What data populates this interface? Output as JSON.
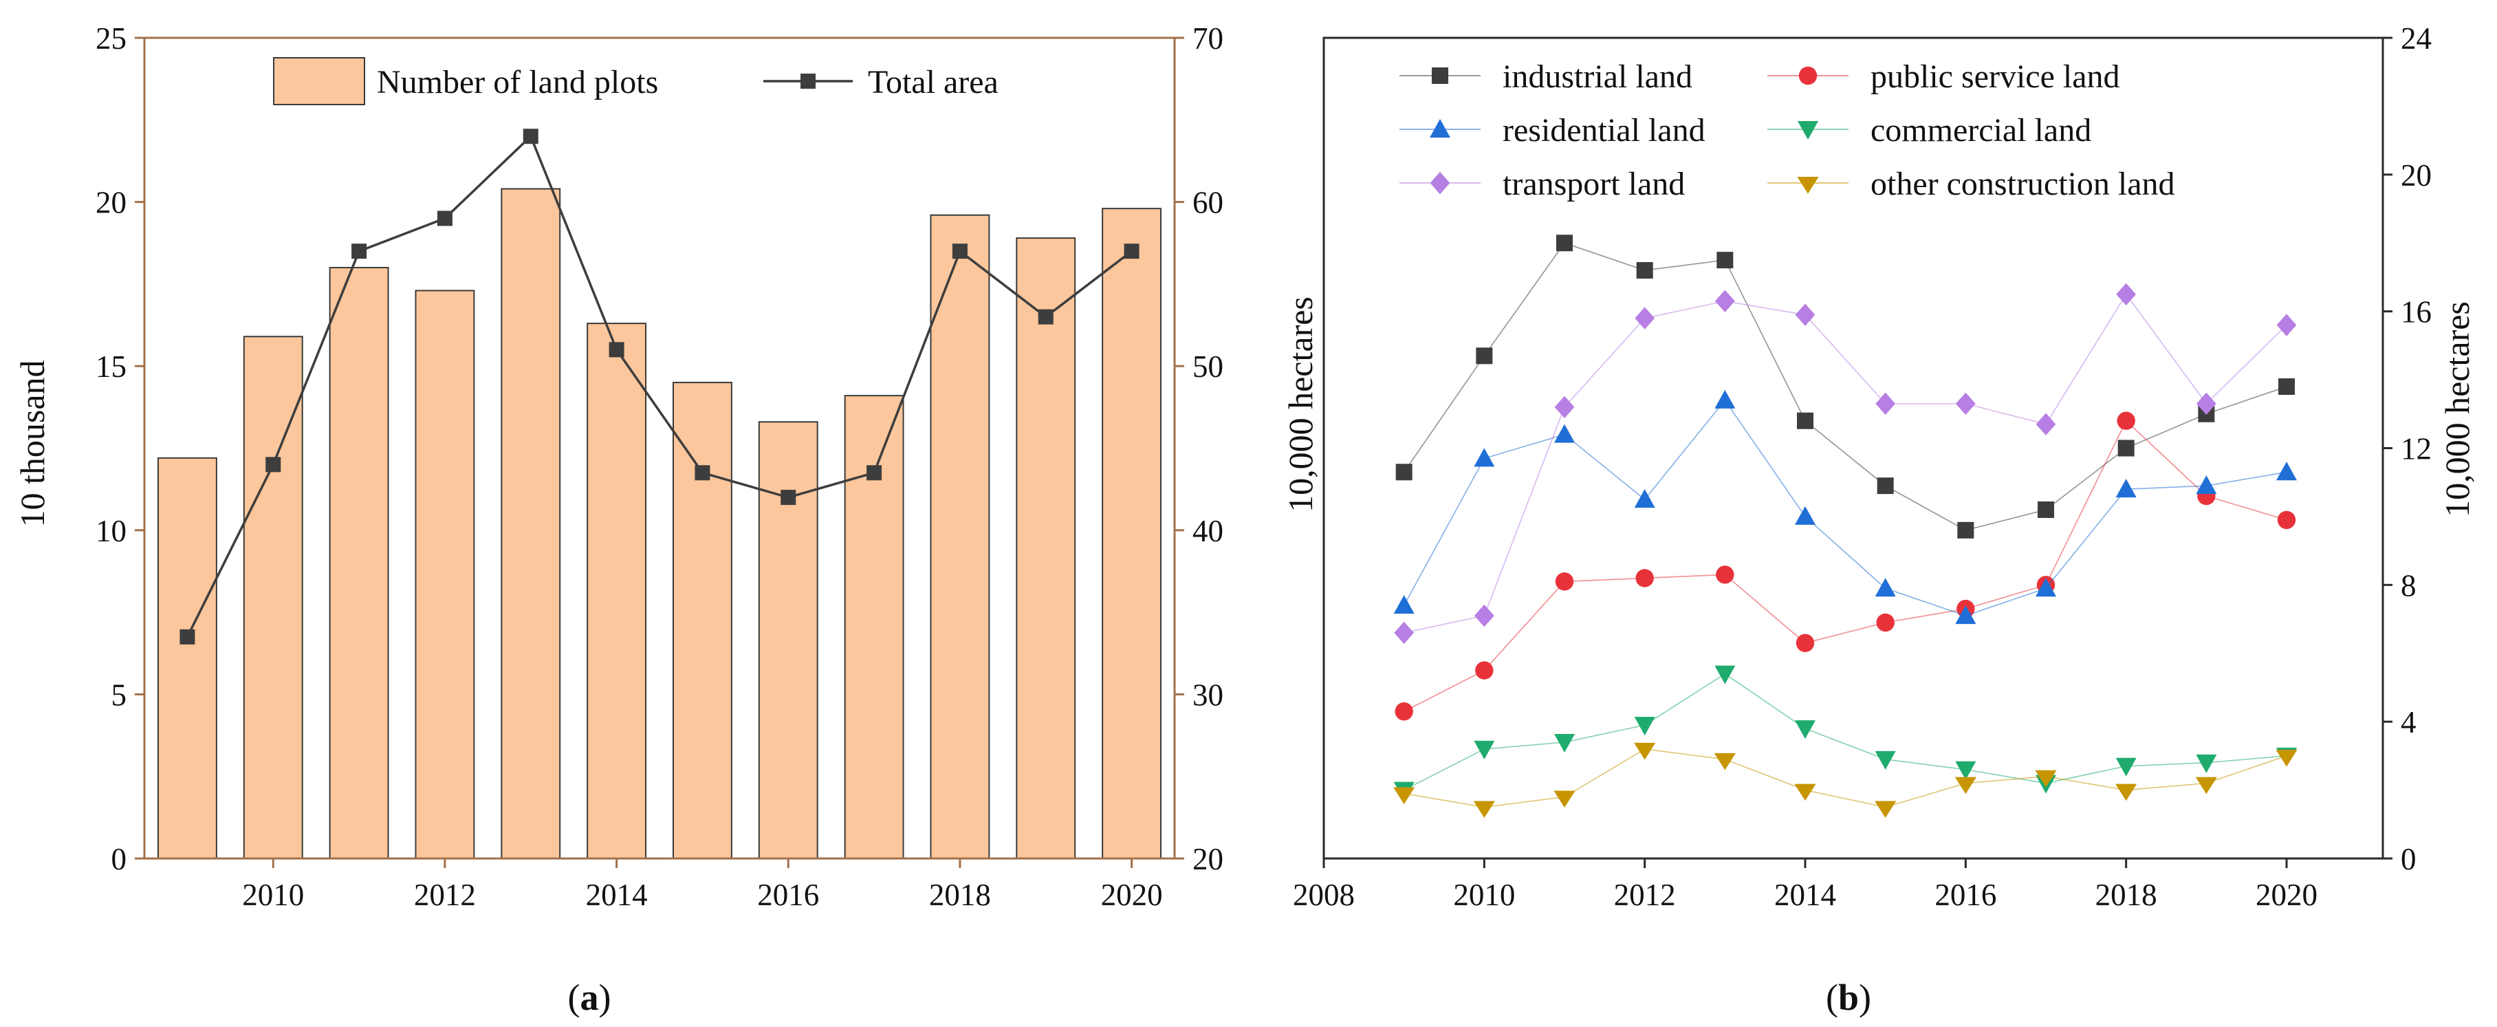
{
  "chart_data": [
    {
      "type": "bar+line",
      "caption_letter": "a",
      "caption_open": "(",
      "caption_close": ")",
      "categories": [
        2009,
        2010,
        2011,
        2012,
        2013,
        2014,
        2015,
        2016,
        2017,
        2018,
        2019,
        2020
      ],
      "x_ticks": [
        2010,
        2012,
        2014,
        2016,
        2018,
        2020
      ],
      "series": [
        {
          "name": "Number of land plots",
          "kind": "bar",
          "axis": "left",
          "values": [
            12.2,
            15.9,
            18.0,
            17.3,
            20.4,
            16.3,
            14.5,
            13.3,
            14.1,
            19.6,
            18.9,
            19.8
          ]
        },
        {
          "name": "Total area",
          "kind": "line",
          "axis": "right",
          "values": [
            33.5,
            44.0,
            57.0,
            59.0,
            64.0,
            51.0,
            43.5,
            42.0,
            43.5,
            57.0,
            53.0,
            57.0
          ]
        }
      ],
      "ylabel_left": "10 thousand",
      "ylim_left": [
        0,
        25
      ],
      "yticks_left": [
        0,
        5,
        10,
        15,
        20,
        25
      ],
      "ylabel_right": "10,000  hectares",
      "ylim_right": [
        20,
        70
      ],
      "yticks_right": [
        20,
        30,
        40,
        50,
        60,
        70
      ],
      "colors": {
        "bar_fill": "#FCC79C",
        "bar_stroke": "#3a3a3a",
        "line": "#3d3d3d",
        "axis": "#a3714a"
      }
    },
    {
      "type": "line",
      "caption_letter": "b",
      "caption_open": "(",
      "caption_close": ")",
      "x": [
        2009,
        2010,
        2011,
        2012,
        2013,
        2014,
        2015,
        2016,
        2017,
        2018,
        2019,
        2020
      ],
      "x_ticks": [
        2008,
        2010,
        2012,
        2014,
        2016,
        2018,
        2020
      ],
      "xlim": [
        2008,
        2021.2
      ],
      "ylabel_right": "10,000  hectares",
      "ylim_right": [
        0,
        24
      ],
      "yticks_right": [
        0,
        4,
        8,
        12,
        16,
        20,
        24
      ],
      "series": [
        {
          "name": "industrial land",
          "marker": "square",
          "color": "#3d3d3d",
          "values": [
            11.3,
            14.7,
            18.0,
            17.2,
            17.5,
            12.8,
            10.9,
            9.6,
            10.2,
            12.0,
            13.0,
            13.8
          ]
        },
        {
          "name": "public service land",
          "marker": "circle",
          "color": "#e8323a",
          "values": [
            4.3,
            5.5,
            8.1,
            8.2,
            8.3,
            6.3,
            6.9,
            7.3,
            8.0,
            12.8,
            10.6,
            9.9
          ]
        },
        {
          "name": "residential land",
          "marker": "triangle-up",
          "color": "#1f6fd6",
          "values": [
            7.4,
            11.7,
            12.4,
            10.5,
            13.4,
            10.0,
            7.9,
            7.1,
            7.9,
            10.8,
            10.9,
            11.3
          ]
        },
        {
          "name": "commercial land",
          "marker": "triangle-down",
          "color": "#1fab6e",
          "values": [
            2.0,
            3.2,
            3.4,
            3.9,
            5.4,
            3.8,
            2.9,
            2.6,
            2.2,
            2.7,
            2.8,
            3.0
          ]
        },
        {
          "name": "transport land",
          "marker": "diamond",
          "color": "#b77fe3",
          "values": [
            6.6,
            7.1,
            13.2,
            15.8,
            16.3,
            15.9,
            13.3,
            13.3,
            12.7,
            16.5,
            13.3,
            15.6
          ]
        },
        {
          "name": "other construction land",
          "marker": "triangle-left",
          "color": "#c79500",
          "values": [
            1.9,
            1.5,
            1.8,
            3.2,
            2.9,
            2.0,
            1.5,
            2.2,
            2.4,
            2.0,
            2.2,
            3.0
          ]
        }
      ]
    }
  ]
}
